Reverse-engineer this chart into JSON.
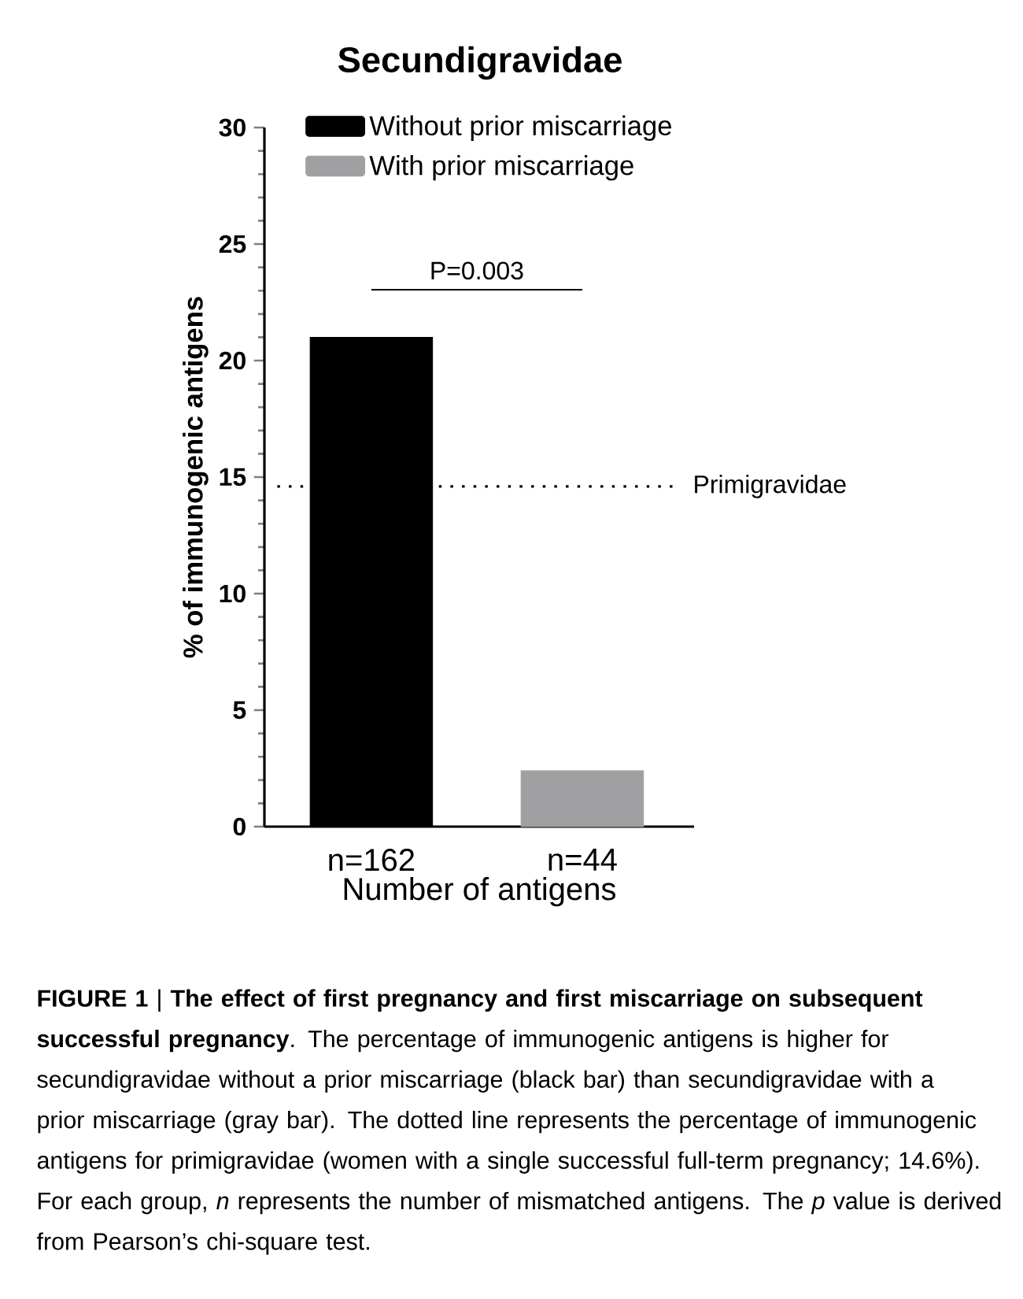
{
  "chart_data": {
    "type": "bar",
    "title": "Secundigravidae",
    "xlabel": "Number of antigens",
    "ylabel": "% of immunogenic antigens",
    "categories": [
      "n=162",
      "n=44"
    ],
    "series": [
      {
        "name": "Without prior miscarriage",
        "color": "#000000",
        "values": [
          21.0,
          null
        ]
      },
      {
        "name": "With prior miscarriage",
        "color": "#a0a0a2",
        "values": [
          null,
          2.4
        ]
      }
    ],
    "ylim": [
      0,
      30
    ],
    "yticks": [
      0,
      5,
      10,
      15,
      20,
      25,
      30
    ],
    "grid": false,
    "legend": "top left",
    "ref_lines": [
      {
        "axis": "y",
        "value": 14.6,
        "label": "Primigravidae",
        "line_style": "dotted",
        "color": "#000000"
      }
    ],
    "annotations": [
      "P=0.003",
      "**FIGURE 1** | **The effect of first pregnancy and first miscarriage on subsequent successful pregnancy**. The percentage of immunogenic antigens is higher for secundigravidae without a prior miscarriage (black bar) than secundigravidae with a prior miscarriage (gray bar). The dotted line represents the percentage of immunogenic antigens for primigravidae (women with a single successful full-term pregnancy; 14.6%). For each group, *n* represents the number of mismatched antigens. The *p* value is derived from Pearson’s chi-square test."
    ]
  }
}
